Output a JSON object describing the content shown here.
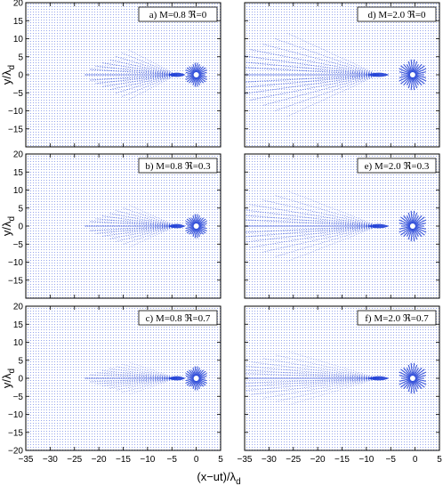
{
  "figure": {
    "ylabel_main": "y/λ",
    "ylabel_sub": "d",
    "xlabel_main": "(x−ut)/λ",
    "xlabel_sub": "d"
  },
  "chart_data": [
    {
      "type": "heatmap",
      "panel": "a",
      "label": "a) M=0.8 ℜ=0",
      "M": 0.8,
      "R": 0,
      "xlim": [
        -35,
        5
      ],
      "ylim": [
        -20,
        20
      ],
      "xticks": [
        -35,
        -30,
        -25,
        -20,
        -15,
        -10,
        -5,
        0,
        5
      ],
      "yticks": [
        -15,
        -10,
        -5,
        0,
        5,
        10,
        15,
        20
      ],
      "grid": false
    },
    {
      "type": "heatmap",
      "panel": "d",
      "label": "d) M=2.0 ℜ=0",
      "M": 2.0,
      "R": 0,
      "xlim": [
        -35,
        5
      ],
      "ylim": [
        -20,
        20
      ],
      "xticks": [
        -35,
        -30,
        -25,
        -20,
        -15,
        -10,
        -5,
        0,
        5
      ],
      "yticks": [
        -15,
        -10,
        -5,
        0,
        5,
        10,
        15,
        20
      ],
      "grid": false
    },
    {
      "type": "heatmap",
      "panel": "b",
      "label": "b) M=0.8 ℜ=0.3",
      "M": 0.8,
      "R": 0.3,
      "xlim": [
        -35,
        5
      ],
      "ylim": [
        -20,
        20
      ],
      "xticks": [
        -35,
        -30,
        -25,
        -20,
        -15,
        -10,
        -5,
        0,
        5
      ],
      "yticks": [
        -15,
        -10,
        -5,
        0,
        5,
        10,
        15,
        20
      ],
      "grid": false
    },
    {
      "type": "heatmap",
      "panel": "e",
      "label": "e) M=2.0 ℜ=0.3",
      "M": 2.0,
      "R": 0.3,
      "xlim": [
        -35,
        5
      ],
      "ylim": [
        -20,
        20
      ],
      "xticks": [
        -35,
        -30,
        -25,
        -20,
        -15,
        -10,
        -5,
        0,
        5
      ],
      "yticks": [
        -15,
        -10,
        -5,
        0,
        5,
        10,
        15,
        20
      ],
      "grid": false
    },
    {
      "type": "heatmap",
      "panel": "c",
      "label": "c) M=0.8 ℜ=0.7",
      "M": 0.8,
      "R": 0.7,
      "xlim": [
        -35,
        5
      ],
      "ylim": [
        -20,
        20
      ],
      "xticks": [
        -35,
        -30,
        -25,
        -20,
        -15,
        -10,
        -5,
        0,
        5
      ],
      "yticks": [
        -20,
        -15,
        -10,
        -5,
        0,
        5,
        10,
        15,
        20
      ],
      "grid": false
    },
    {
      "type": "heatmap",
      "panel": "f",
      "label": "f) M=2.0 ℜ=0.7",
      "M": 2.0,
      "R": 0.7,
      "xlim": [
        -35,
        5
      ],
      "ylim": [
        -20,
        20
      ],
      "xticks": [
        -35,
        -30,
        -25,
        -20,
        -15,
        -10,
        -5,
        0,
        5
      ],
      "yticks": [
        -20,
        -15,
        -10,
        -5,
        0,
        5,
        10,
        15,
        20
      ],
      "grid": false
    }
  ],
  "colors": {
    "field": "#1f3fd6",
    "axes": "#000000"
  }
}
